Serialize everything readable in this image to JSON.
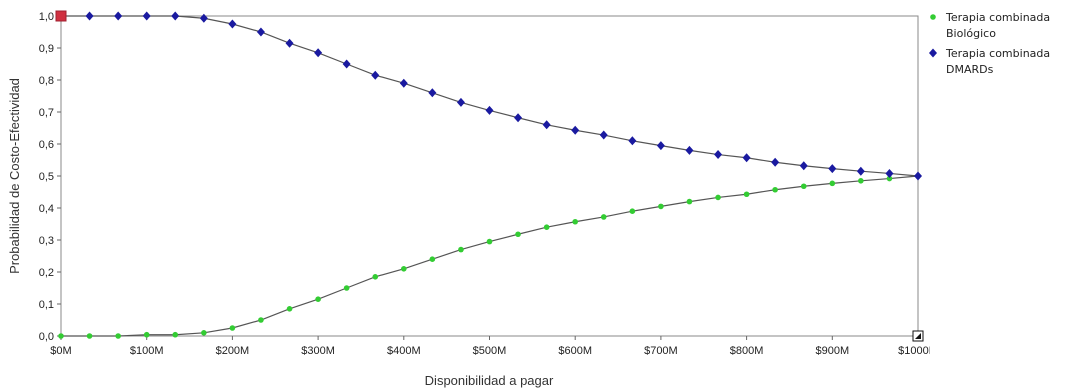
{
  "chart_data": {
    "type": "line",
    "xlabel": "Disponibilidad a pagar",
    "ylabel": "Probabilidad de Costo-Efectividad",
    "xlim": [
      0,
      1000
    ],
    "ylim": [
      0,
      1
    ],
    "x_ticks": [
      0,
      100,
      200,
      300,
      400,
      500,
      600,
      700,
      800,
      900,
      1000
    ],
    "x_tick_labels": [
      "$0M",
      "$100M",
      "$200M",
      "$300M",
      "$400M",
      "$500M",
      "$600M",
      "$700M",
      "$800M",
      "$900M",
      "$1000M"
    ],
    "y_ticks": [
      0,
      0.1,
      0.2,
      0.3,
      0.4,
      0.5,
      0.6,
      0.7,
      0.8,
      0.9,
      1.0
    ],
    "y_tick_labels": [
      "0,0",
      "0,1",
      "0,2",
      "0,3",
      "0,4",
      "0,5",
      "0,6",
      "0,7",
      "0,8",
      "0,9",
      "1,0"
    ],
    "grid": false,
    "legend_position": "right",
    "x": [
      0,
      33.3,
      66.7,
      100,
      133.3,
      166.7,
      200,
      233.3,
      266.7,
      300,
      333.3,
      366.7,
      400,
      433.3,
      466.7,
      500,
      533.3,
      566.7,
      600,
      633.3,
      666.7,
      700,
      733.3,
      766.7,
      800,
      833.3,
      866.7,
      900,
      933.3,
      966.7,
      1000
    ],
    "series": [
      {
        "name": "Terapia combinada Biológico",
        "color": "#33cc33",
        "marker": "dot",
        "values": [
          0,
          0,
          0,
          0.004,
          0.004,
          0.01,
          0.025,
          0.05,
          0.085,
          0.115,
          0.15,
          0.185,
          0.21,
          0.24,
          0.27,
          0.295,
          0.318,
          0.34,
          0.357,
          0.372,
          0.39,
          0.405,
          0.42,
          0.433,
          0.443,
          0.457,
          0.468,
          0.477,
          0.485,
          0.492,
          0.5
        ]
      },
      {
        "name": "Terapia combinada DMARDs",
        "color": "#1a1aa0",
        "marker": "diamond",
        "values": [
          1.0,
          1.0,
          1.0,
          1.0,
          1.0,
          0.993,
          0.975,
          0.95,
          0.915,
          0.885,
          0.85,
          0.815,
          0.79,
          0.76,
          0.73,
          0.705,
          0.682,
          0.66,
          0.643,
          0.628,
          0.61,
          0.595,
          0.58,
          0.567,
          0.557,
          0.543,
          0.532,
          0.523,
          0.515,
          0.508,
          0.5
        ]
      }
    ]
  }
}
